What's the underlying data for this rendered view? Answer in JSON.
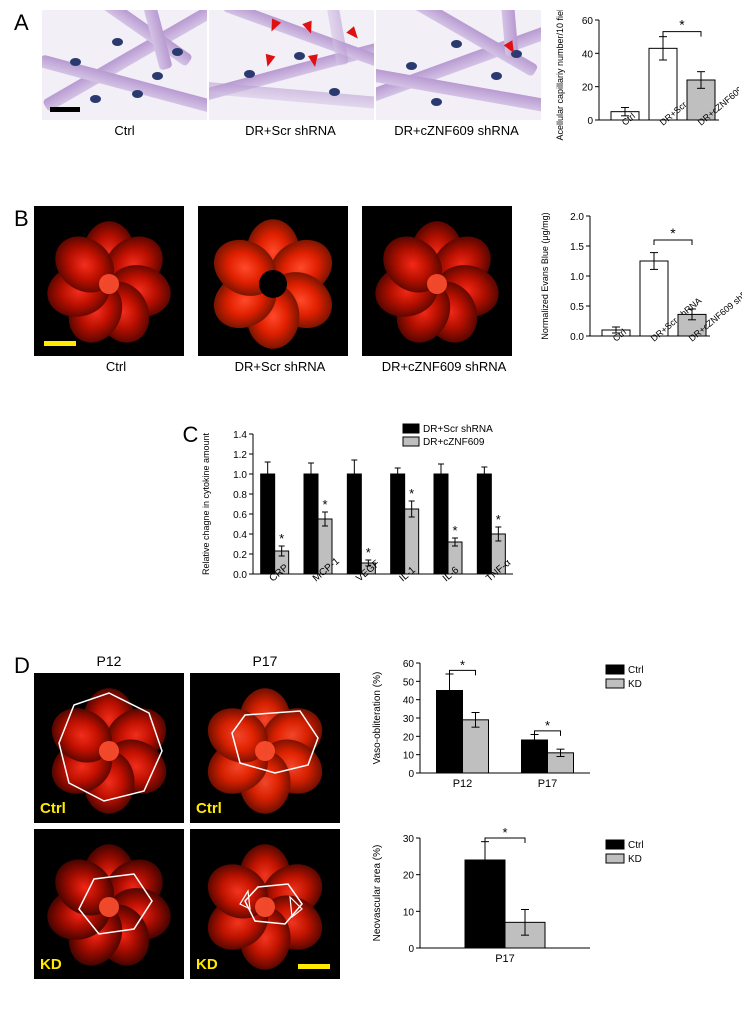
{
  "panelA": {
    "label": "A",
    "conditions": [
      "Ctrl",
      "DR+Scr shRNA",
      "DR+cZNF609 shRNA"
    ],
    "chart": {
      "type": "bar",
      "ylabel": "Acellular capillariy number/10 fields",
      "ylim": [
        0,
        60
      ],
      "ytick_step": 20,
      "label_fontsize": 10,
      "categories": [
        "Ctrl",
        "DR+Scr shRNA",
        "DR+cZNF609 shRNA"
      ],
      "values": [
        5,
        43,
        24
      ],
      "errors": [
        2.5,
        7,
        5
      ],
      "bar_colors": [
        "#ffffff",
        "#ffffff",
        "#bfbfbf"
      ],
      "bar_border": "#000000",
      "sig_bracket": {
        "from": 1,
        "to": 2,
        "y": 53,
        "label": "*"
      },
      "background_color": "#ffffff"
    }
  },
  "panelB": {
    "label": "B",
    "conditions": [
      "Ctrl",
      "DR+Scr shRNA",
      "DR+cZNF609 shRNA"
    ],
    "chart": {
      "type": "bar",
      "ylabel": "Normalized Evans Blue (μg/mg)",
      "ylim": [
        0,
        2.0
      ],
      "ytick_step": 0.5,
      "label_fontsize": 10,
      "categories": [
        "Ctrl",
        "DR+Scr shRNA",
        "DR+cZNF609 shRNA"
      ],
      "values": [
        0.1,
        1.25,
        0.36
      ],
      "errors": [
        0.05,
        0.14,
        0.09
      ],
      "bar_colors": [
        "#ffffff",
        "#ffffff",
        "#bfbfbf"
      ],
      "bar_border": "#000000",
      "sig_bracket": {
        "from": 1,
        "to": 2,
        "y": 1.6,
        "label": "*"
      },
      "background_color": "#ffffff"
    }
  },
  "panelC": {
    "label": "C",
    "chart": {
      "type": "grouped-bar",
      "ylabel": "Relative chagne in cytokine amount",
      "ylim": [
        0,
        1.4
      ],
      "ytick_step": 0.2,
      "label_fontsize": 10,
      "categories": [
        "CRP",
        "MCP-1",
        "VEGF",
        "IL-1",
        "IL-6",
        "TNF-α"
      ],
      "series": [
        {
          "name": "DR+Scr shRNA",
          "color": "#000000",
          "values": [
            1.0,
            1.0,
            1.0,
            1.0,
            1.0,
            1.0
          ],
          "errors": [
            0.12,
            0.11,
            0.14,
            0.06,
            0.1,
            0.07
          ]
        },
        {
          "name": "DR+cZNF609",
          "color": "#bfbfbf",
          "values": [
            0.23,
            0.55,
            0.11,
            0.65,
            0.32,
            0.4
          ],
          "errors": [
            0.05,
            0.07,
            0.03,
            0.08,
            0.04,
            0.07
          ]
        }
      ],
      "sig_marks": [
        "*",
        "*",
        "*",
        "*",
        "*",
        "*"
      ],
      "background_color": "#ffffff"
    }
  },
  "panelD": {
    "label": "D",
    "columns": [
      "P12",
      "P17"
    ],
    "rows": [
      "Ctrl",
      "KD"
    ],
    "chart_vaso": {
      "type": "grouped-bar",
      "ylabel": "Vaso-obliteration (%)",
      "ylim": [
        0,
        60
      ],
      "ytick_step": 10,
      "label_fontsize": 10,
      "categories": [
        "P12",
        "P17"
      ],
      "series": [
        {
          "name": "Ctrl",
          "color": "#000000",
          "values": [
            45,
            18
          ],
          "errors": [
            9,
            3
          ]
        },
        {
          "name": "KD",
          "color": "#bfbfbf",
          "values": [
            29,
            11
          ],
          "errors": [
            4,
            2
          ]
        }
      ],
      "sig_brackets": [
        {
          "cat": 0,
          "y": 56,
          "label": "*"
        },
        {
          "cat": 1,
          "y": 23,
          "label": "*"
        }
      ],
      "background_color": "#ffffff"
    },
    "chart_neo": {
      "type": "bar",
      "ylabel": "Neovascular area (%)",
      "ylim": [
        0,
        30
      ],
      "ytick_step": 10,
      "label_fontsize": 10,
      "categories": [
        "P17"
      ],
      "series": [
        {
          "name": "Ctrl",
          "color": "#000000",
          "values": [
            24
          ],
          "errors": [
            5
          ]
        },
        {
          "name": "KD",
          "color": "#bfbfbf",
          "values": [
            7
          ],
          "errors": [
            3.5
          ]
        }
      ],
      "sig_bracket_single": {
        "y": 30,
        "label": "*"
      },
      "background_color": "#ffffff"
    }
  },
  "colors": {
    "micrograph_bg": "#f2eff7",
    "strand": "#b89ad1",
    "nucleus": "#2a3a6f",
    "arrow": "#e01010",
    "fluor_red": "#ff2010",
    "fluor_dark": "#4a0500",
    "yellow": "#ffea00"
  }
}
